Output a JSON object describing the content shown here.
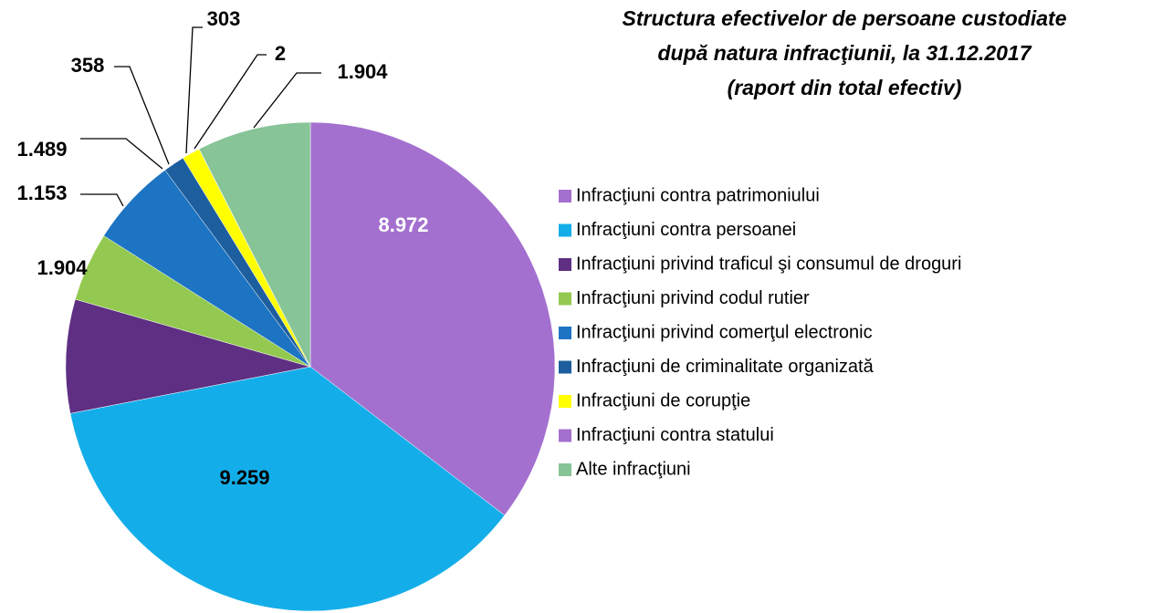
{
  "chart_data": {
    "type": "pie",
    "title": [
      "Structura efectivelor de persoane custodiate",
      "după natura infracţiunii, la 31.12.2017",
      "(raport din total efectiv)"
    ],
    "categories": [
      "Infracţiuni contra patrimoniului",
      "Infracţiuni contra persoanei",
      "Infracţiuni privind traficul şi consumul de droguri",
      "Infracţiuni privind codul rutier",
      "Infracţiuni privind comerţul electronic",
      "Infracţiuni de criminalitate organizată",
      "Infracţiuni de corupţie",
      "Infracţiuni contra statului",
      "Alte infracţiuni"
    ],
    "values": [
      8972,
      9259,
      1904,
      1153,
      1489,
      358,
      303,
      2,
      1904
    ],
    "value_labels": [
      "8.972",
      "9.259",
      "1.904",
      "1.153",
      "1.489",
      "358",
      "303",
      "2",
      "1.904"
    ],
    "colors": [
      "#a370cf",
      "#13aee9",
      "#5e2f82",
      "#93c950",
      "#1d74c2",
      "#1d5e9e",
      "#ffff00",
      "#a370cf",
      "#87c497"
    ],
    "legend": "right"
  }
}
